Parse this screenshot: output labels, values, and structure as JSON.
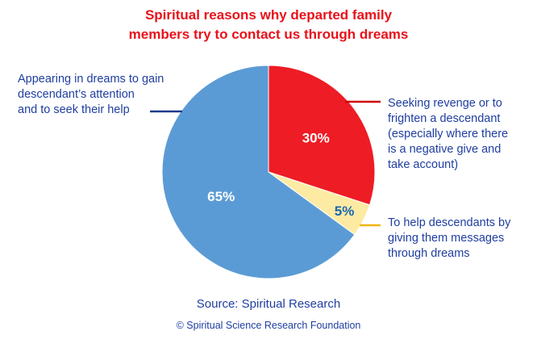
{
  "chart_data": {
    "type": "pie",
    "title_lines": [
      "Spiritual reasons why departed family",
      "members try to contact us through dreams"
    ],
    "slices": [
      {
        "value": 30,
        "value_label": "30%",
        "color": "#ee1c24",
        "label_color": "#ffffff",
        "annotation_lines": [
          "Seeking revenge or to",
          "frighten a descendant",
          "(especially where there",
          "is a negative give and",
          "take account)"
        ],
        "leader_color": "#cc0000"
      },
      {
        "value": 5,
        "value_label": "5%",
        "color": "#fdeba3",
        "label_color": "#1a66b3",
        "annotation_lines": [
          "To help descendants by",
          "giving them messages",
          "through dreams"
        ],
        "leader_color": "#f0b400"
      },
      {
        "value": 65,
        "value_label": "65%",
        "color": "#5b9bd5",
        "label_color": "#ffffff",
        "annotation_lines": [
          "Appearing in dreams to gain",
          "descendant’s attention",
          "and to seek their help"
        ],
        "leader_color": "#1f3b8c"
      }
    ],
    "source": "Source: Spiritual Research",
    "copyright": "© Spiritual Science Research Foundation",
    "colors": {
      "title": "#e8121a",
      "annotation_text": "#1f3ea0",
      "source_text": "#1f3ea0",
      "copyright_text": "#1f3ea0"
    }
  }
}
